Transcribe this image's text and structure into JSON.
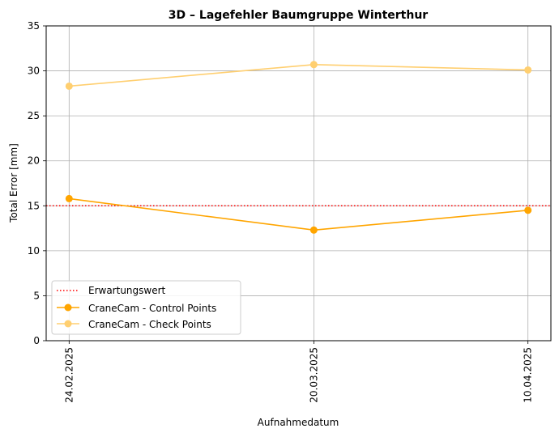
{
  "chart_data": {
    "type": "line",
    "title": "3D – Lagefehler Baumgruppe Winterthur",
    "xlabel": "Aufnahmedatum",
    "ylabel": "Total Error [mm]",
    "categories": [
      "24.02.2025",
      "20.03.2025",
      "10.04.2025"
    ],
    "x": [
      "2025-02-24",
      "2025-03-20",
      "2025-04-10"
    ],
    "ylim": [
      0,
      35
    ],
    "yticks": [
      0,
      5,
      10,
      15,
      20,
      25,
      30,
      35
    ],
    "grid": true,
    "legend_position": "lower-left",
    "reference_line": {
      "name": "Erwartungswert",
      "value": 15,
      "color": "#ff0000",
      "style": "dotted"
    },
    "series": [
      {
        "name": "CraneCam - Control Points",
        "values": [
          15.8,
          12.3,
          14.5
        ],
        "color": "#ffa500"
      },
      {
        "name": "CraneCam - Check Points",
        "values": [
          28.3,
          30.7,
          30.1
        ],
        "color": "#ffcf70"
      }
    ]
  }
}
